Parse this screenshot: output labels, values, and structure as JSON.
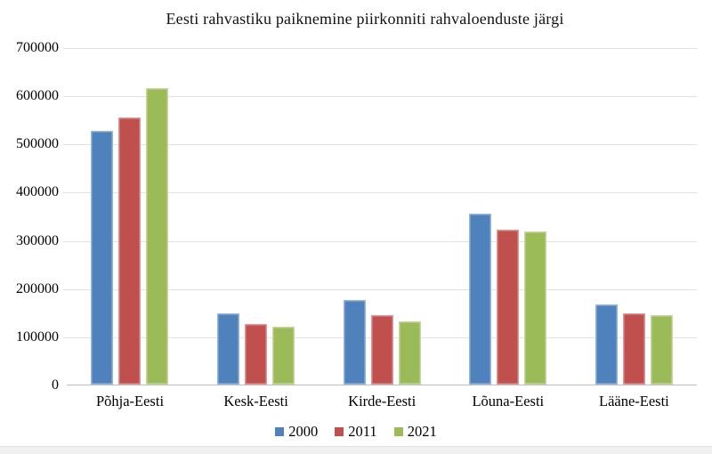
{
  "chart_data": {
    "type": "bar",
    "title": "Eesti rahvastiku paiknemine piirkonniti rahvaloenduste järgi",
    "categories": [
      "Põhja-Eesti",
      "Kesk-Eesti",
      "Kirde-Eesti",
      "Lõuna-Eesti",
      "Lääne-Eesti"
    ],
    "series": [
      {
        "name": "2000",
        "color": "#4F81BD",
        "values": [
          527000,
          147000,
          175000,
          355000,
          166000
        ]
      },
      {
        "name": "2011",
        "color": "#C0504D",
        "values": [
          554000,
          126000,
          145000,
          322000,
          147000
        ]
      },
      {
        "name": "2021",
        "color": "#9BBB59",
        "values": [
          615000,
          121000,
          132000,
          317000,
          145000
        ]
      }
    ],
    "xlabel": "",
    "ylabel": "",
    "ylim": [
      0,
      700000
    ],
    "ytick_step": 100000,
    "ytick_labels": [
      "0",
      "100000",
      "200000",
      "300000",
      "400000",
      "500000",
      "600000",
      "700000"
    ],
    "grid": true,
    "legend_position": "bottom"
  }
}
